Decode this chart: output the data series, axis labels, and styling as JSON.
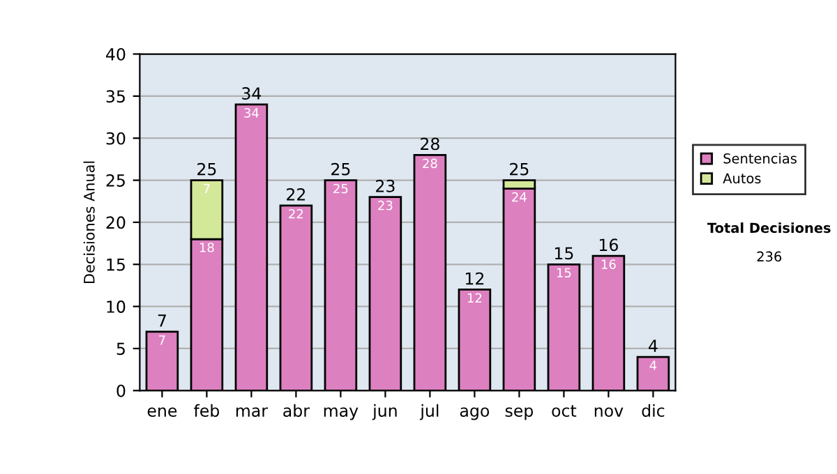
{
  "chart_data": {
    "type": "bar",
    "stacked": true,
    "ylabel": "Decisiones Anual",
    "categories": [
      "ene",
      "feb",
      "mar",
      "abr",
      "may",
      "jun",
      "jul",
      "ago",
      "sep",
      "oct",
      "nov",
      "dic"
    ],
    "series": [
      {
        "name": "Sentencias",
        "color": "#dd80c0",
        "values": [
          7,
          18,
          34,
          22,
          25,
          23,
          28,
          12,
          24,
          15,
          16,
          4
        ],
        "value_labels": [
          "7",
          "18",
          "34",
          "22",
          "25",
          "23",
          "28",
          "12",
          "24",
          "15",
          "16",
          "4"
        ]
      },
      {
        "name": "Autos",
        "color": "#d4e89a",
        "values": [
          null,
          7,
          null,
          null,
          null,
          null,
          null,
          null,
          1,
          null,
          null,
          null
        ],
        "value_labels": [
          null,
          "7",
          null,
          null,
          null,
          null,
          null,
          null,
          null,
          null,
          null,
          null
        ]
      }
    ],
    "totals": [
      "7",
      "25",
      "34",
      "22",
      "25",
      "23",
      "28",
      "12",
      "25",
      "15",
      "16",
      "4"
    ],
    "ylim": [
      0,
      40
    ],
    "yticks": [
      0,
      5,
      10,
      15,
      20,
      25,
      30,
      35,
      40
    ],
    "grid": "y",
    "legend": "right",
    "annotations": [
      "Total Decisiones",
      "236"
    ]
  }
}
